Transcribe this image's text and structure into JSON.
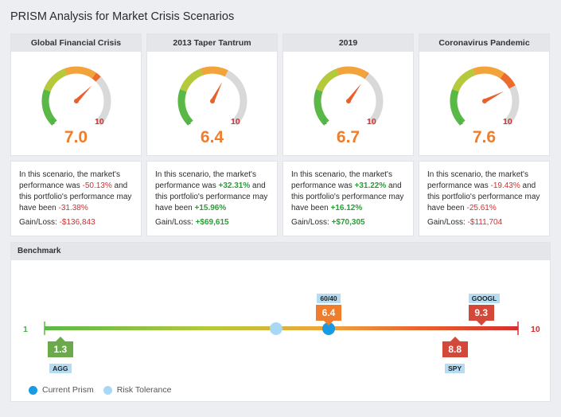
{
  "page_title": "PRISM Analysis for Market Crisis Scenarios",
  "gauge_min": "1",
  "gauge_max": "10",
  "scenarios": [
    {
      "title": "Global Financial Crisis",
      "score": "7.0",
      "score_value": 7.0,
      "text_a": "In this scenario, the market's performance was ",
      "market": "-50.13%",
      "text_b": " and this portfolio's performance may have been ",
      "portfolio": "-31.38%",
      "gl_label": "Gain/Loss: ",
      "gl_value": "-$136,843",
      "positive": false
    },
    {
      "title": "2013 Taper Tantrum",
      "score": "6.4",
      "score_value": 6.4,
      "text_a": "In this scenario, the market's performance was ",
      "market": "+32.31%",
      "text_b": " and this portfolio's performance may have been ",
      "portfolio": "+15.96%",
      "gl_label": "Gain/Loss: ",
      "gl_value": "+$69,615",
      "positive": true
    },
    {
      "title": "2019",
      "score": "6.7",
      "score_value": 6.7,
      "text_a": "In this scenario, the market's performance was ",
      "market": "+31.22%",
      "text_b": " and this portfolio's performance may have been ",
      "portfolio": "+16.12%",
      "gl_label": "Gain/Loss: ",
      "gl_value": "+$70,305",
      "positive": true
    },
    {
      "title": "Coronavirus Pandemic",
      "score": "7.6",
      "score_value": 7.6,
      "text_a": "In this scenario, the market's performance was ",
      "market": "-19.43%",
      "text_b": " and this portfolio's performance may have been ",
      "portfolio": "-25.61%",
      "gl_label": "Gain/Loss: ",
      "gl_value": "-$111,704",
      "positive": false
    }
  ],
  "benchmark": {
    "title": "Benchmark",
    "scale_min": "1",
    "scale_max": "10",
    "scale_min_value": 1,
    "scale_max_value": 10,
    "current_prism_value": 6.4,
    "risk_tolerance_value": 5.4,
    "markers": [
      {
        "label": "60/40",
        "value": "6.4",
        "numeric": 6.4,
        "position": "above",
        "color": "#ef7d2c"
      },
      {
        "label": "GOOGL",
        "value": "9.3",
        "numeric": 9.3,
        "position": "above",
        "color": "#d4483a"
      },
      {
        "label": "AGG",
        "value": "1.3",
        "numeric": 1.3,
        "position": "below",
        "color": "#6aaa4a"
      },
      {
        "label": "SPY",
        "value": "8.8",
        "numeric": 8.8,
        "position": "below",
        "color": "#d4483a"
      }
    ],
    "legend": {
      "current": "Current Prism",
      "risk": "Risk Tolerance"
    },
    "colors": {
      "current": "#1a9ae0",
      "risk": "#a8d8f5",
      "low": "#4caf50",
      "high": "#d32f2f"
    }
  }
}
